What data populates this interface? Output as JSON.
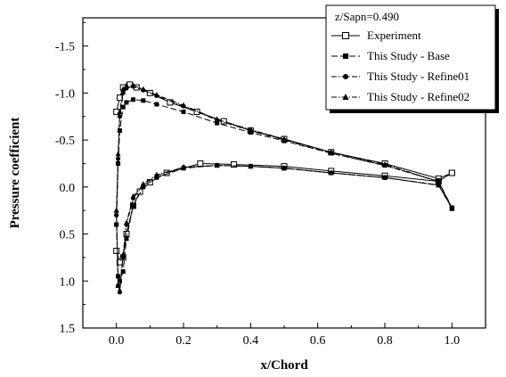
{
  "chart_data": {
    "type": "line",
    "title": "",
    "xlabel": "x/Chord",
    "ylabel": "Pressure coefficient",
    "xlim": [
      -0.1,
      1.1
    ],
    "ylim": [
      1.5,
      -1.8
    ],
    "y_inverted": true,
    "grid": false,
    "legend": {
      "title": "z/Sapn=0.490",
      "placement": "top-right"
    },
    "x_ticks": [
      {
        "value": 0.0,
        "label": "0.0"
      },
      {
        "value": 0.2,
        "label": "0.2"
      },
      {
        "value": 0.4,
        "label": "0.4"
      },
      {
        "value": 0.6,
        "label": "0.6"
      },
      {
        "value": 0.8,
        "label": "0.8"
      },
      {
        "value": 1.0,
        "label": "1.0"
      }
    ],
    "y_ticks": [
      {
        "value": -1.5,
        "label": "-1.5"
      },
      {
        "value": -1.0,
        "label": "-1.0"
      },
      {
        "value": -0.5,
        "label": "-0.5"
      },
      {
        "value": 0.0,
        "label": "0.0"
      },
      {
        "value": 0.5,
        "label": "0.5"
      },
      {
        "value": 1.0,
        "label": "1.0"
      },
      {
        "value": 1.5,
        "label": "1.5"
      }
    ],
    "series": [
      {
        "name": "Experiment",
        "marker": "open-square",
        "dash": "none",
        "suction": {
          "x": [
            0.0,
            0.01,
            0.02,
            0.04,
            0.06,
            0.1,
            0.16,
            0.24,
            0.32,
            0.4,
            0.5,
            0.64,
            0.8,
            0.96,
            1.0
          ],
          "y": [
            -0.8,
            -0.95,
            -1.06,
            -1.09,
            -1.06,
            -1.0,
            -0.9,
            -0.8,
            -0.7,
            -0.6,
            -0.51,
            -0.37,
            -0.25,
            -0.09,
            -0.15
          ]
        },
        "pressure": {
          "x": [
            0.0,
            0.01,
            0.02,
            0.03,
            0.05,
            0.07,
            0.1,
            0.15,
            0.25,
            0.35,
            0.5,
            0.64,
            0.8,
            0.96,
            1.0
          ],
          "y": [
            0.68,
            0.8,
            0.75,
            0.5,
            0.2,
            0.05,
            -0.05,
            -0.15,
            -0.25,
            -0.24,
            -0.22,
            -0.17,
            -0.12,
            -0.06,
            -0.15
          ]
        }
      },
      {
        "name": "This Study - Base",
        "marker": "filled-square",
        "dash": "long-dash",
        "suction": {
          "x": [
            0.0,
            0.005,
            0.01,
            0.02,
            0.03,
            0.05,
            0.08,
            0.12,
            0.2,
            0.3,
            0.4,
            0.5,
            0.64,
            0.8,
            0.96,
            1.0
          ],
          "y": [
            0.4,
            -0.25,
            -0.6,
            -0.85,
            -0.9,
            -0.93,
            -0.92,
            -0.88,
            -0.8,
            -0.68,
            -0.58,
            -0.49,
            -0.36,
            -0.23,
            -0.06,
            0.22
          ]
        },
        "pressure": {
          "x": [
            0.0,
            0.005,
            0.01,
            0.02,
            0.03,
            0.05,
            0.08,
            0.12,
            0.2,
            0.3,
            0.4,
            0.5,
            0.64,
            0.8,
            0.96,
            1.0
          ],
          "y": [
            0.4,
            0.95,
            1.0,
            0.9,
            0.55,
            0.2,
            0.0,
            -0.1,
            -0.2,
            -0.23,
            -0.22,
            -0.2,
            -0.15,
            -0.1,
            -0.02,
            0.22
          ]
        }
      },
      {
        "name": "This Study - Refine01",
        "marker": "filled-circle",
        "dash": "dash-dot",
        "suction": {
          "x": [
            0.0,
            0.005,
            0.01,
            0.02,
            0.03,
            0.05,
            0.08,
            0.12,
            0.2,
            0.3,
            0.4,
            0.5,
            0.64,
            0.8,
            0.96,
            1.0
          ],
          "y": [
            0.3,
            -0.3,
            -0.75,
            -1.0,
            -1.05,
            -1.07,
            -1.03,
            -0.97,
            -0.86,
            -0.71,
            -0.6,
            -0.5,
            -0.36,
            -0.23,
            -0.06,
            0.22
          ]
        },
        "pressure": {
          "x": [
            0.0,
            0.005,
            0.01,
            0.02,
            0.03,
            0.05,
            0.08,
            0.12,
            0.2,
            0.3,
            0.4,
            0.5,
            0.64,
            0.8,
            0.96,
            1.0
          ],
          "y": [
            0.3,
            1.05,
            1.12,
            0.75,
            0.4,
            0.12,
            -0.02,
            -0.12,
            -0.21,
            -0.23,
            -0.22,
            -0.2,
            -0.15,
            -0.1,
            -0.02,
            0.22
          ]
        }
      },
      {
        "name": "This Study - Refine02",
        "marker": "filled-triangle",
        "dash": "dash-dot",
        "suction": {
          "x": [
            0.0,
            0.005,
            0.01,
            0.02,
            0.03,
            0.05,
            0.08,
            0.12,
            0.2,
            0.3,
            0.4,
            0.5,
            0.64,
            0.8,
            0.96,
            1.0
          ],
          "y": [
            0.25,
            -0.35,
            -0.8,
            -1.04,
            -1.08,
            -1.08,
            -1.04,
            -0.98,
            -0.87,
            -0.72,
            -0.61,
            -0.51,
            -0.37,
            -0.24,
            -0.06,
            0.23
          ]
        },
        "pressure": {
          "x": [
            0.0,
            0.005,
            0.01,
            0.02,
            0.03,
            0.05,
            0.08,
            0.12,
            0.2,
            0.3,
            0.4,
            0.5,
            0.64,
            0.8,
            0.96,
            1.0
          ],
          "y": [
            0.25,
            1.05,
            1.1,
            0.72,
            0.38,
            0.1,
            -0.03,
            -0.13,
            -0.21,
            -0.23,
            -0.22,
            -0.2,
            -0.15,
            -0.1,
            -0.02,
            0.23
          ]
        }
      }
    ],
    "colors": {
      "ink": "#000000",
      "background": "#ffffff"
    }
  }
}
